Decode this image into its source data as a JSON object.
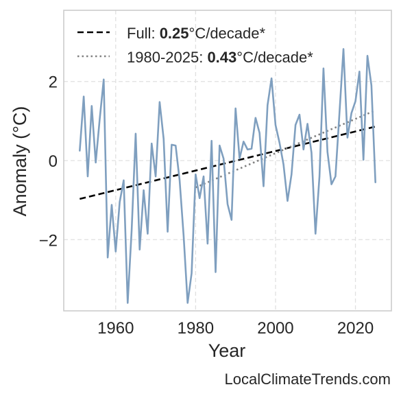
{
  "chart_data": {
    "type": "line",
    "xlabel": "Year",
    "ylabel": "Anomaly (°C)",
    "xlim": [
      1947,
      2029
    ],
    "ylim": [
      -3.8,
      3.8
    ],
    "xticks": [
      1960,
      1980,
      2000,
      2020
    ],
    "yticks": [
      -2,
      0,
      2
    ],
    "ytick_labels": [
      "−2",
      "0",
      "2"
    ],
    "grid": true,
    "legend_position": "top-left",
    "colors": {
      "series": "#7f9fbf",
      "full_trend": "#000000",
      "recent_trend": "#808080"
    },
    "series": [
      {
        "x": [
          1951,
          1952,
          1953,
          1954,
          1955,
          1956,
          1957,
          1958,
          1959,
          1960,
          1961,
          1962,
          1963,
          1964,
          1965,
          1966,
          1967,
          1968,
          1969,
          1970,
          1971,
          1972,
          1973,
          1974,
          1975,
          1976,
          1977,
          1978,
          1979,
          1980,
          1981,
          1982,
          1983,
          1984,
          1985,
          1986,
          1987,
          1988,
          1989,
          1990,
          1991,
          1992,
          1993,
          1994,
          1995,
          1996,
          1997,
          1998,
          1999,
          2000,
          2001,
          2002,
          2003,
          2004,
          2005,
          2006,
          2007,
          2008,
          2009,
          2010,
          2011,
          2012,
          2013,
          2014,
          2015,
          2016,
          2017,
          2018,
          2019,
          2020,
          2021,
          2022,
          2023,
          2024,
          2025
        ],
        "values": [
          0.25,
          1.62,
          -0.4,
          1.38,
          -0.05,
          1.05,
          2.05,
          -2.45,
          -1.12,
          -2.3,
          -1.05,
          -0.5,
          -3.6,
          -1.75,
          0.68,
          -2.25,
          -0.75,
          -1.85,
          0.43,
          -0.4,
          1.48,
          0.55,
          -1.8,
          0.4,
          0.38,
          -0.5,
          -1.9,
          -3.6,
          -2.85,
          -0.35,
          -0.95,
          -0.4,
          -2.1,
          0.5,
          -2.82,
          0.38,
          0.05,
          -1.1,
          -1.5,
          1.32,
          0.05,
          0.48,
          0.28,
          0.3,
          1.08,
          0.7,
          -0.65,
          1.4,
          2.08,
          0.9,
          0.45,
          -0.1,
          -1.02,
          -0.35,
          0.9,
          1.16,
          0.28,
          0.93,
          0.2,
          -1.85,
          -0.4,
          2.33,
          0.22,
          -0.6,
          -0.4,
          1.2,
          2.82,
          0.58,
          1.2,
          1.5,
          2.25,
          0.02,
          2.65,
          1.9,
          -0.55
        ]
      }
    ],
    "trends": [
      {
        "label_prefix": "Full: ",
        "label_value": "0.25",
        "label_suffix": "°C/decade*",
        "x": [
          1951,
          2025
        ],
        "y": [
          -0.97,
          0.86
        ],
        "style": "dashed"
      },
      {
        "label_prefix": "1980-2025: ",
        "label_value": "0.43",
        "label_suffix": "°C/decade*",
        "x": [
          1980,
          2025
        ],
        "y": [
          -0.68,
          1.27
        ],
        "style": "dotted"
      }
    ]
  },
  "watermark": "LocalClimateTrends.com"
}
